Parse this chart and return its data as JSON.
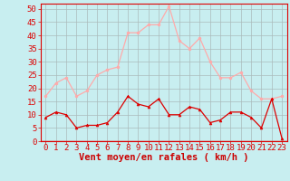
{
  "hours": [
    0,
    1,
    2,
    3,
    4,
    5,
    6,
    7,
    8,
    9,
    10,
    11,
    12,
    13,
    14,
    15,
    16,
    17,
    18,
    19,
    20,
    21,
    22,
    23
  ],
  "wind_avg": [
    9,
    11,
    10,
    5,
    6,
    6,
    7,
    11,
    17,
    14,
    13,
    16,
    10,
    10,
    13,
    12,
    7,
    8,
    11,
    11,
    9,
    5,
    16,
    1
  ],
  "wind_gust": [
    17,
    22,
    24,
    17,
    19,
    25,
    27,
    28,
    41,
    41,
    44,
    44,
    51,
    38,
    35,
    39,
    30,
    24,
    24,
    26,
    19,
    16,
    16,
    17
  ],
  "avg_color": "#dd0000",
  "gust_color": "#ffaaaa",
  "bg_color": "#c8eef0",
  "grid_color": "#aabbbb",
  "xlabel": "Vent moyen/en rafales ( km/h )",
  "xlabel_color": "#cc0000",
  "ylim": [
    0,
    52
  ],
  "yticks": [
    0,
    5,
    10,
    15,
    20,
    25,
    30,
    35,
    40,
    45,
    50
  ],
  "tick_fontsize": 6.5,
  "label_fontsize": 7.5
}
